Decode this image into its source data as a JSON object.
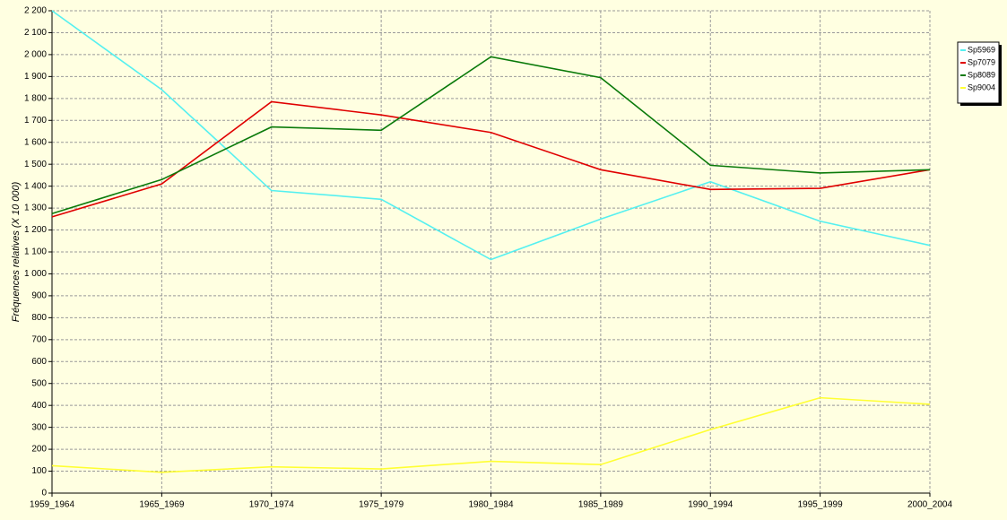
{
  "chart_data": {
    "type": "line",
    "y_label": "Fréquences relatives (X 10 000)",
    "categories": [
      "1959_1964",
      "1965_1969",
      "1970_1974",
      "1975_1979",
      "1980_1984",
      "1985_1989",
      "1990_1994",
      "1995_1999",
      "2000_2004"
    ],
    "series": [
      {
        "name": "Sp5969",
        "color": "#55f0f0",
        "values": [
          2200,
          1840,
          1380,
          1340,
          1065,
          1250,
          1420,
          1240,
          1130
        ]
      },
      {
        "name": "Sp7079",
        "color": "#e00000",
        "values": [
          1260,
          1410,
          1785,
          1725,
          1645,
          1475,
          1385,
          1390,
          1475
        ]
      },
      {
        "name": "Sp8089",
        "color": "#0a7a0a",
        "values": [
          1275,
          1430,
          1670,
          1655,
          1990,
          1895,
          1495,
          1460,
          1475
        ]
      },
      {
        "name": "Sp9004",
        "color": "#ffff33",
        "values": [
          125,
          95,
          120,
          110,
          145,
          130,
          290,
          435,
          405
        ]
      }
    ],
    "ylim": [
      0,
      2200
    ],
    "yticks": [
      0,
      100,
      200,
      300,
      400,
      500,
      600,
      700,
      800,
      900,
      {
        "value": 1000,
        "label": "1 000"
      },
      {
        "value": 1100,
        "label": "1 100"
      },
      {
        "value": 1200,
        "label": "1 200"
      },
      {
        "value": 1300,
        "label": "1 300"
      },
      {
        "value": 1400,
        "label": "1 400"
      },
      {
        "value": 1500,
        "label": "1 500"
      },
      {
        "value": 1600,
        "label": "1 600"
      },
      {
        "value": 1700,
        "label": "1 700"
      },
      {
        "value": 1800,
        "label": "1 800"
      },
      {
        "value": 1900,
        "label": "1 900"
      },
      {
        "value": 2000,
        "label": "2 000"
      },
      {
        "value": 2100,
        "label": "2 100"
      },
      {
        "value": 2200,
        "label": "2 200"
      }
    ],
    "grid": true,
    "legend": "top-right"
  }
}
